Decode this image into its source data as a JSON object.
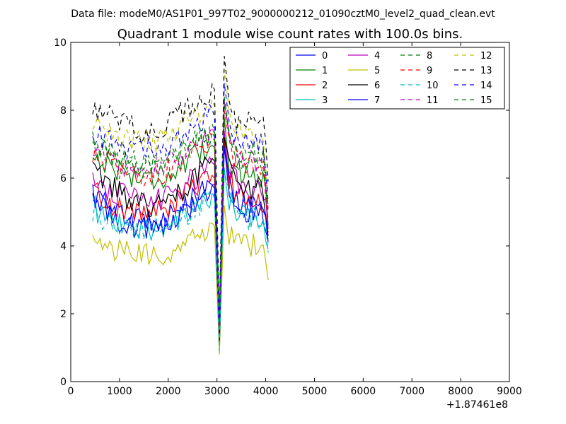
{
  "figure": {
    "suptitle": "Data file: modeM0/AS1P01_997T02_9000000212_01090cztM0_level2_quad_clean.evt"
  },
  "chart_data": {
    "type": "line",
    "title": "Quadrant 1 module wise count rates with 100.0s bins.",
    "xlabel": "",
    "ylabel": "",
    "x_offset_label": "+1.87461e8",
    "xlim": [
      0,
      9000
    ],
    "ylim": [
      0,
      10
    ],
    "x_ticks": [
      0,
      1000,
      2000,
      3000,
      4000,
      5000,
      6000,
      7000,
      8000,
      9000
    ],
    "y_ticks": [
      0,
      2,
      4,
      6,
      8,
      10
    ],
    "x_start": 450,
    "x_step": 100,
    "bins": 37,
    "grid": false,
    "legend_position": "top-right",
    "legend_columns": 4,
    "series": [
      {
        "name": "0",
        "color": "#0000ff",
        "dash": "solid",
        "levels": [
          5.6,
          5.4,
          5.3,
          5.1,
          5.0,
          4.9,
          4.9,
          4.8,
          4.8,
          4.8,
          4.8,
          4.8,
          4.8,
          4.9,
          4.9,
          4.9,
          5.0,
          5.1,
          5.2,
          5.3,
          5.3,
          5.4,
          5.5,
          5.6,
          5.7,
          5.8,
          1.2,
          7.0,
          5.8,
          5.5,
          5.3,
          5.2,
          5.1,
          5.1,
          5.0,
          5.0,
          4.2
        ]
      },
      {
        "name": "1",
        "color": "#008000",
        "dash": "solid",
        "levels": [
          6.6,
          6.6,
          6.5,
          6.4,
          6.3,
          6.3,
          6.2,
          6.1,
          6.1,
          6.0,
          6.0,
          6.0,
          6.0,
          6.0,
          6.0,
          6.0,
          6.1,
          6.2,
          6.3,
          6.4,
          6.5,
          6.6,
          6.7,
          6.8,
          6.9,
          6.9,
          1.5,
          7.8,
          6.5,
          6.3,
          6.2,
          6.2,
          6.2,
          6.2,
          6.1,
          6.1,
          4.6
        ]
      },
      {
        "name": "2",
        "color": "#ff0000",
        "dash": "solid",
        "levels": [
          5.7,
          5.6,
          5.4,
          5.3,
          5.2,
          5.2,
          5.1,
          5.1,
          5.0,
          5.0,
          5.0,
          5.0,
          5.0,
          5.0,
          5.0,
          5.1,
          5.2,
          5.3,
          5.4,
          5.5,
          5.6,
          5.7,
          5.8,
          5.9,
          6.0,
          6.0,
          1.3,
          7.2,
          6.0,
          5.7,
          5.5,
          5.4,
          5.4,
          5.4,
          5.3,
          5.3,
          4.4
        ]
      },
      {
        "name": "3",
        "color": "#00bfbf",
        "dash": "solid",
        "levels": [
          5.2,
          5.0,
          4.9,
          4.8,
          4.8,
          4.7,
          4.6,
          4.6,
          4.5,
          4.5,
          4.5,
          4.5,
          4.5,
          4.5,
          4.5,
          4.6,
          4.7,
          4.7,
          4.8,
          4.9,
          5.0,
          5.1,
          5.2,
          5.3,
          5.4,
          5.5,
          1.0,
          6.3,
          5.4,
          5.1,
          4.9,
          4.8,
          4.8,
          4.8,
          4.7,
          4.7,
          3.9
        ]
      },
      {
        "name": "4",
        "color": "#bf00bf",
        "dash": "solid",
        "levels": [
          6.0,
          5.9,
          5.8,
          5.7,
          5.6,
          5.5,
          5.5,
          5.4,
          5.4,
          5.4,
          5.3,
          5.3,
          5.3,
          5.4,
          5.4,
          5.4,
          5.5,
          5.6,
          5.7,
          5.8,
          5.9,
          6.0,
          6.1,
          6.2,
          6.3,
          6.4,
          1.4,
          7.4,
          6.2,
          6.0,
          5.8,
          5.7,
          5.7,
          5.6,
          5.6,
          5.6,
          4.5
        ]
      },
      {
        "name": "5",
        "color": "#bfbf00",
        "dash": "solid",
        "levels": [
          4.1,
          4.1,
          4.0,
          4.0,
          3.9,
          3.9,
          3.8,
          3.8,
          3.8,
          3.7,
          3.7,
          3.7,
          3.7,
          3.7,
          3.7,
          3.8,
          3.8,
          3.9,
          4.0,
          4.1,
          4.2,
          4.3,
          4.3,
          4.4,
          4.5,
          4.6,
          0.8,
          5.2,
          4.4,
          4.2,
          4.1,
          4.0,
          4.0,
          4.0,
          3.9,
          3.9,
          3.0
        ]
      },
      {
        "name": "6",
        "color": "#000000",
        "dash": "solid",
        "levels": [
          6.2,
          6.1,
          6.0,
          5.8,
          5.7,
          5.6,
          5.5,
          5.4,
          5.3,
          5.3,
          5.2,
          5.2,
          5.2,
          5.2,
          5.3,
          5.3,
          5.4,
          5.5,
          5.6,
          5.8,
          5.9,
          6.1,
          6.2,
          6.3,
          6.4,
          6.5,
          1.6,
          7.2,
          6.2,
          6.0,
          5.8,
          5.8,
          5.7,
          5.7,
          5.7,
          5.7,
          4.3
        ]
      },
      {
        "name": "7",
        "color": "#0000ff",
        "dash": "solid",
        "levels": [
          5.5,
          5.3,
          5.2,
          5.0,
          4.9,
          4.8,
          4.7,
          4.6,
          4.6,
          4.6,
          4.5,
          4.5,
          4.5,
          4.6,
          4.6,
          4.7,
          4.8,
          4.9,
          5.0,
          5.1,
          5.2,
          5.3,
          5.4,
          5.5,
          5.6,
          5.7,
          1.1,
          6.9,
          5.7,
          5.4,
          5.2,
          5.1,
          5.0,
          5.0,
          4.9,
          4.9,
          4.1
        ]
      },
      {
        "name": "8",
        "color": "#008000",
        "dash": "dashed",
        "levels": [
          7.0,
          6.9,
          6.8,
          6.7,
          6.6,
          6.5,
          6.5,
          6.4,
          6.3,
          6.3,
          6.3,
          6.3,
          6.3,
          6.3,
          6.3,
          6.4,
          6.5,
          6.6,
          6.7,
          6.8,
          6.9,
          7.0,
          7.1,
          7.1,
          7.2,
          7.2,
          1.6,
          8.2,
          6.9,
          6.7,
          6.6,
          6.5,
          6.5,
          6.5,
          6.4,
          6.4,
          5.0
        ]
      },
      {
        "name": "9",
        "color": "#ff0000",
        "dash": "dashed",
        "levels": [
          6.8,
          6.7,
          6.6,
          6.5,
          6.4,
          6.3,
          6.3,
          6.2,
          6.2,
          6.1,
          6.1,
          6.1,
          6.1,
          6.1,
          6.1,
          6.2,
          6.3,
          6.4,
          6.5,
          6.6,
          6.7,
          6.8,
          6.9,
          7.0,
          7.0,
          7.1,
          1.5,
          8.0,
          6.8,
          6.6,
          6.5,
          6.4,
          6.4,
          6.3,
          6.3,
          6.3,
          4.8
        ]
      },
      {
        "name": "10",
        "color": "#00bfbf",
        "dash": "dashed",
        "levels": [
          5.0,
          4.9,
          4.8,
          4.8,
          4.7,
          4.7,
          4.6,
          4.6,
          4.5,
          4.5,
          4.5,
          4.5,
          4.5,
          4.5,
          4.5,
          4.6,
          4.6,
          4.7,
          4.8,
          4.9,
          5.0,
          5.1,
          5.2,
          5.3,
          5.4,
          5.4,
          0.9,
          6.2,
          5.3,
          5.1,
          4.9,
          4.9,
          4.8,
          4.8,
          4.8,
          4.8,
          3.8
        ]
      },
      {
        "name": "11",
        "color": "#bf00bf",
        "dash": "dashed",
        "levels": [
          6.9,
          6.8,
          6.7,
          6.6,
          6.5,
          6.5,
          6.4,
          6.4,
          6.3,
          6.3,
          6.3,
          6.3,
          6.3,
          6.3,
          6.4,
          6.4,
          6.5,
          6.6,
          6.7,
          6.8,
          6.9,
          7.0,
          7.1,
          7.2,
          7.3,
          7.3,
          1.7,
          8.3,
          7.0,
          6.8,
          6.7,
          6.6,
          6.6,
          6.6,
          6.5,
          6.5,
          5.1
        ]
      },
      {
        "name": "12",
        "color": "#bfbf00",
        "dash": "dashed",
        "levels": [
          7.6,
          7.5,
          7.5,
          7.4,
          7.3,
          7.3,
          7.2,
          7.2,
          7.1,
          7.1,
          7.1,
          7.1,
          7.1,
          7.1,
          7.2,
          7.2,
          7.3,
          7.4,
          7.5,
          7.6,
          7.7,
          7.8,
          7.9,
          8.0,
          8.1,
          8.1,
          1.8,
          9.2,
          7.7,
          7.5,
          7.4,
          7.3,
          7.3,
          7.3,
          7.2,
          7.2,
          5.6
        ]
      },
      {
        "name": "13",
        "color": "#000000",
        "dash": "dashed",
        "levels": [
          8.0,
          8.0,
          7.9,
          7.9,
          7.8,
          7.7,
          7.6,
          7.5,
          7.5,
          7.4,
          7.4,
          7.4,
          7.4,
          7.5,
          7.5,
          7.6,
          7.7,
          7.8,
          7.9,
          8.0,
          8.1,
          8.2,
          8.3,
          8.4,
          8.5,
          8.6,
          1.9,
          9.6,
          8.0,
          7.8,
          7.7,
          7.6,
          7.6,
          7.6,
          7.5,
          7.5,
          5.9
        ]
      },
      {
        "name": "14",
        "color": "#0000ff",
        "dash": "dashed",
        "levels": [
          7.3,
          7.3,
          7.2,
          7.1,
          7.1,
          7.0,
          7.0,
          6.9,
          6.9,
          6.9,
          6.9,
          6.9,
          6.9,
          6.9,
          6.9,
          7.0,
          7.0,
          7.1,
          7.2,
          7.3,
          7.4,
          7.5,
          7.6,
          7.7,
          7.8,
          7.8,
          1.8,
          8.8,
          7.4,
          7.2,
          7.1,
          7.0,
          7.0,
          7.0,
          7.0,
          6.9,
          5.3
        ]
      },
      {
        "name": "15",
        "color": "#008000",
        "dash": "dashed",
        "levels": [
          7.1,
          7.0,
          6.9,
          6.8,
          6.7,
          6.6,
          6.6,
          6.5,
          6.5,
          6.4,
          6.4,
          6.4,
          6.4,
          6.4,
          6.4,
          6.5,
          6.6,
          6.7,
          6.8,
          6.9,
          7.0,
          7.1,
          7.2,
          7.3,
          7.3,
          7.4,
          1.7,
          8.4,
          7.1,
          6.9,
          6.8,
          6.7,
          6.7,
          6.7,
          6.6,
          6.6,
          5.2
        ]
      }
    ]
  }
}
